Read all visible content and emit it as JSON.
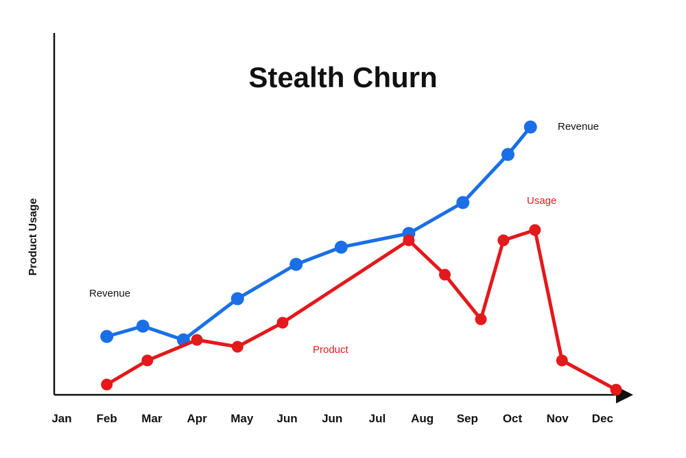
{
  "chart_data": {
    "type": "line",
    "title": "Stealth Churn",
    "xlabel": "",
    "ylabel": "Product Usage",
    "categories": [
      "Jan",
      "Feb",
      "Mar",
      "Apr",
      "May",
      "Jun",
      "Jun",
      "Jul",
      "Aug",
      "Sep",
      "Oct",
      "Nov",
      "Dec"
    ],
    "grid": false,
    "ylim": [
      0,
      100
    ],
    "series": [
      {
        "id": "revenue",
        "color": "#1a6fe6",
        "x": [
          1,
          1.8,
          2.7,
          3.9,
          5.2,
          6.2,
          7.7,
          8.9,
          9.9,
          10.4
        ],
        "values": [
          17,
          20,
          16,
          28,
          38,
          43,
          47,
          56,
          70,
          78
        ]
      },
      {
        "id": "usage",
        "color": "#e3191b",
        "x": [
          1,
          1.9,
          3.0,
          3.9,
          4.9,
          7.7,
          8.5,
          9.3,
          9.8,
          10.5,
          11.1,
          12.3
        ],
        "values": [
          3,
          10,
          16,
          14,
          21,
          45,
          35,
          22,
          45,
          48,
          10,
          1.5
        ]
      }
    ],
    "annotations": [
      {
        "text": "Revenue",
        "color": "#111111"
      },
      {
        "text": "Revenue",
        "color": "#111111"
      },
      {
        "text": "Usage",
        "color": "#e3191b"
      },
      {
        "text": "Product",
        "color": "#e3191b"
      }
    ]
  }
}
